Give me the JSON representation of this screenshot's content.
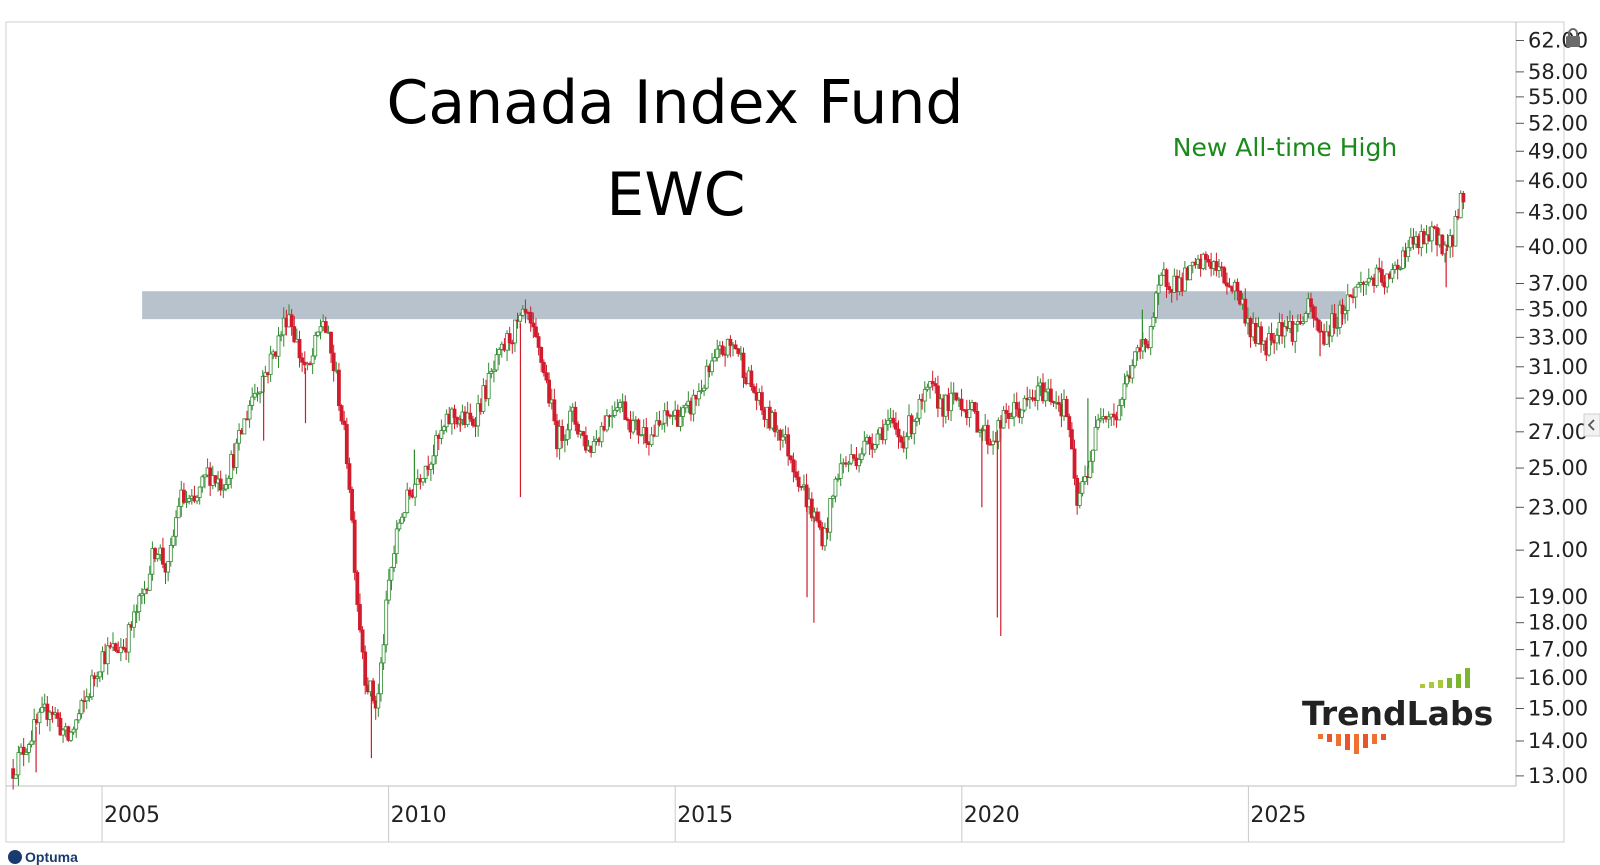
{
  "chart_data": {
    "type": "candlestick",
    "title": "Canada Index Fund",
    "subtitle": "EWC",
    "annotation": "New All-time High",
    "y_scale": "log",
    "ylim": [
      13,
      63
    ],
    "xlim": [
      2003.0,
      2030.0
    ],
    "y_ticks": [
      "62.00",
      "58.00",
      "55.00",
      "52.00",
      "49.00",
      "46.00",
      "43.00",
      "40.00",
      "37.00",
      "35.00",
      "33.00",
      "31.00",
      "29.00",
      "27.00",
      "25.00",
      "23.00",
      "21.00",
      "19.00",
      "18.00",
      "17.00",
      "16.00",
      "15.00",
      "14.00",
      "13.00"
    ],
    "x_ticks": [
      "2005",
      "2010",
      "2015",
      "2020",
      "2025"
    ],
    "resistance_band": {
      "from_date": 2005.7,
      "to_date": 2026.7,
      "low": 34.3,
      "high": 36.4
    },
    "close_path": [
      [
        2003.45,
        13.2
      ],
      [
        2003.8,
        14.3
      ],
      [
        2004.1,
        15.1
      ],
      [
        2004.4,
        14.0
      ],
      [
        2004.7,
        15.2
      ],
      [
        2005.0,
        16.8
      ],
      [
        2005.4,
        17.2
      ],
      [
        2005.7,
        19.0
      ],
      [
        2005.95,
        21.3
      ],
      [
        2006.15,
        20.0
      ],
      [
        2006.35,
        23.5
      ],
      [
        2006.6,
        23.0
      ],
      [
        2006.85,
        24.8
      ],
      [
        2007.1,
        24.2
      ],
      [
        2007.35,
        26.0
      ],
      [
        2007.6,
        29.0
      ],
      [
        2007.9,
        31.0
      ],
      [
        2008.1,
        33.0
      ],
      [
        2008.25,
        35.0
      ],
      [
        2008.45,
        31.8
      ],
      [
        2008.6,
        30.5
      ],
      [
        2008.85,
        34.5
      ],
      [
        2009.1,
        30.0
      ],
      [
        2009.3,
        25.0
      ],
      [
        2009.45,
        19.0
      ],
      [
        2009.6,
        16.0
      ],
      [
        2009.8,
        15.0
      ],
      [
        2010.0,
        19.5
      ],
      [
        2010.2,
        22.5
      ],
      [
        2010.5,
        24.5
      ],
      [
        2010.8,
        26.0
      ],
      [
        2011.1,
        28.0
      ],
      [
        2011.45,
        27.5
      ],
      [
        2011.75,
        30.0
      ],
      [
        2012.1,
        33.0
      ],
      [
        2012.4,
        34.5
      ],
      [
        2012.7,
        31.0
      ],
      [
        2012.95,
        26.5
      ],
      [
        2013.2,
        28.0
      ],
      [
        2013.5,
        26.0
      ],
      [
        2013.75,
        27.5
      ],
      [
        2014.0,
        29.0
      ],
      [
        2014.3,
        27.2
      ],
      [
        2014.6,
        26.8
      ],
      [
        2014.9,
        28.0
      ],
      [
        2015.2,
        28.0
      ],
      [
        2015.5,
        30.0
      ],
      [
        2015.8,
        32.0
      ],
      [
        2016.05,
        32.5
      ],
      [
        2016.3,
        30.0
      ],
      [
        2016.55,
        28.0
      ],
      [
        2016.85,
        27.0
      ],
      [
        2017.1,
        25.0
      ],
      [
        2017.35,
        23.0
      ],
      [
        2017.6,
        21.5
      ],
      [
        2017.85,
        25.0
      ],
      [
        2018.1,
        25.5
      ],
      [
        2018.4,
        26.5
      ],
      [
        2018.7,
        27.5
      ],
      [
        2018.95,
        26.5
      ],
      [
        2019.2,
        28.0
      ],
      [
        2019.45,
        29.5
      ],
      [
        2019.7,
        28.5
      ],
      [
        2019.95,
        29.0
      ],
      [
        2020.2,
        28.0
      ],
      [
        2020.5,
        26.5
      ],
      [
        2020.8,
        28.0
      ],
      [
        2021.1,
        28.5
      ],
      [
        2021.4,
        29.5
      ],
      [
        2021.65,
        29.0
      ],
      [
        2021.85,
        28.0
      ],
      [
        2022.0,
        23.0
      ],
      [
        2022.2,
        25.0
      ],
      [
        2022.45,
        28.5
      ],
      [
        2022.7,
        28.0
      ],
      [
        2022.95,
        31.0
      ],
      [
        2023.25,
        33.0
      ],
      [
        2023.5,
        37.5
      ],
      [
        2023.8,
        37.0
      ],
      [
        2024.05,
        38.0
      ],
      [
        2024.3,
        39.0
      ],
      [
        2024.55,
        37.5
      ],
      [
        2024.8,
        36.5
      ],
      [
        2025.05,
        33.5
      ],
      [
        2025.3,
        32.5
      ],
      [
        2025.55,
        34.0
      ],
      [
        2025.8,
        33.5
      ],
      [
        2026.05,
        35.0
      ],
      [
        2026.3,
        33.0
      ],
      [
        2026.55,
        34.5
      ],
      [
        2026.85,
        36.5
      ],
      [
        2027.15,
        37.5
      ],
      [
        2027.45,
        37.0
      ],
      [
        2027.75,
        40.0
      ],
      [
        2028.05,
        40.5
      ],
      [
        2028.3,
        41.0
      ],
      [
        2028.5,
        39.5
      ],
      [
        2028.65,
        43.0
      ],
      [
        2028.78,
        45.6
      ]
    ],
    "spikes": [
      [
        2007.82,
        26.5
      ],
      [
        2008.55,
        27.5
      ],
      [
        2009.7,
        13.5
      ],
      [
        2010.45,
        26.0
      ],
      [
        2011.25,
        27.0
      ],
      [
        2012.3,
        23.5
      ],
      [
        2017.3,
        19.0
      ],
      [
        2017.42,
        18.0
      ],
      [
        2020.35,
        23.0
      ],
      [
        2020.62,
        18.2
      ],
      [
        2020.68,
        17.5
      ],
      [
        2022.9,
        30.5
      ],
      [
        2022.2,
        29.0
      ],
      [
        2023.15,
        35.0
      ],
      [
        2026.25,
        31.7
      ],
      [
        2028.45,
        36.7
      ],
      [
        2003.85,
        13.1
      ]
    ],
    "colors": {
      "up": "#2e8b2e",
      "down": "#d01c2c",
      "band": "#b8c2cd",
      "annotation": "#1a8a1a",
      "grid": "#c9c9c9"
    }
  },
  "logo": {
    "name_part1": "Trend",
    "name_part2": "Labs",
    "brand": "Optuma"
  },
  "icons": {
    "lock": "lock-icon",
    "collapse": "chevron-left-icon"
  }
}
